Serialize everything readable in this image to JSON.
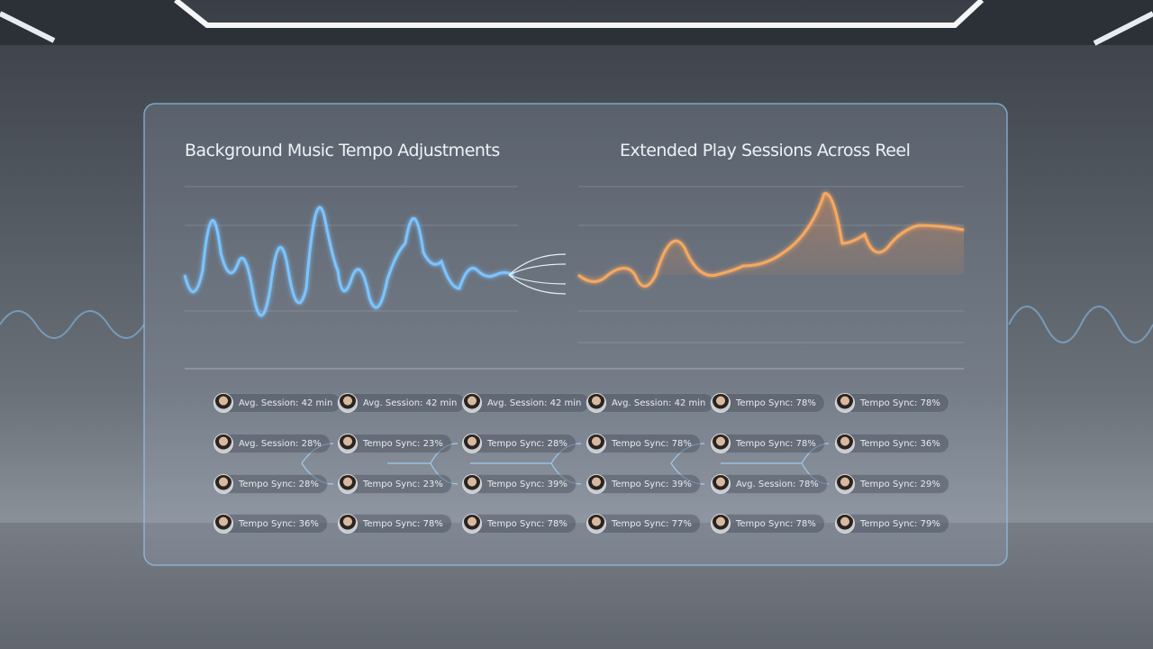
{
  "panel": {
    "left_title": "Background Music Tempo Adjustments",
    "right_title": "Extended Play Sessions Across Reel"
  },
  "chips": [
    [
      "Avg. Session: 42 min",
      "Avg. Session: 42 min",
      "Avg. Session: 42 min",
      "Avg. Session: 42 min",
      "Tempo Sync: 78%",
      "Tempo Sync: 78%"
    ],
    [
      "Avg. Session: 28%",
      "Tempo Sync: 23%",
      "Tempo Sync: 28%",
      "Tempo Sync: 78%",
      "Tempo Sync: 78%",
      "Tempo Sync: 36%"
    ],
    [
      "Tempo Sync: 28%",
      "Tempo Sync: 23%",
      "Tempo Sync: 39%",
      "Tempo Sync: 39%",
      "Avg. Session: 78%",
      "Tempo Sync: 29%"
    ],
    [
      "Tempo Sync: 36%",
      "Tempo Sync: 78%",
      "Tempo Sync: 78%",
      "Tempo Sync: 77%",
      "Tempo Sync: 78%",
      "Tempo Sync: 79%"
    ]
  ]
}
